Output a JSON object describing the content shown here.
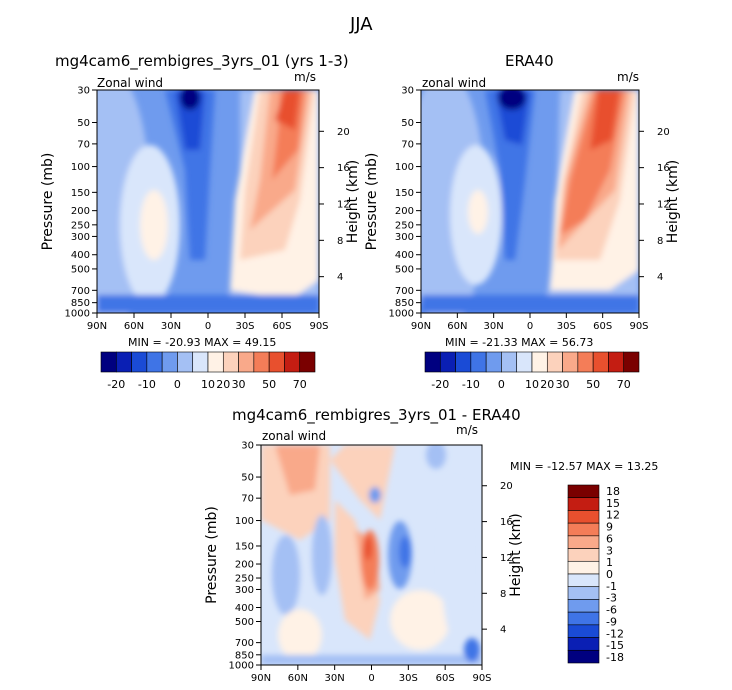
{
  "page": {
    "main_title": "JJA"
  },
  "colors": {
    "levels_main": [
      "#000080",
      "#0a1fb4",
      "#1a4bd6",
      "#3f74e6",
      "#6f9bee",
      "#a4c0f4",
      "#d9e6fb",
      "#fff2e6",
      "#fcd2bc",
      "#f9a98a",
      "#f47d58",
      "#e8502e",
      "#c41d12",
      "#7a0000"
    ],
    "levels_diff": [
      "#000080",
      "#0a1fb4",
      "#1a4bd6",
      "#3f74e6",
      "#6f9bee",
      "#a4c0f4",
      "#d9e6fb",
      "#fff2e6",
      "#fcd2bc",
      "#f9a98a",
      "#f47d58",
      "#e8502e",
      "#c41d12",
      "#7a0000"
    ]
  },
  "panels": [
    {
      "title": "mg4cam6_rembigres_3yrs_01 (yrs 1-3)",
      "variable": "Zonal wind",
      "units": "m/s",
      "stats": "MIN = -20.93   MAX =  49.15"
    },
    {
      "title": "ERA40",
      "variable": "zonal wind",
      "units": "m/s",
      "stats": "MIN = -21.33   MAX =  56.73"
    },
    {
      "title": "mg4cam6_rembigres_3yrs_01 - ERA40",
      "variable": "zonal wind",
      "units": "m/s",
      "stats": "MIN = -12.57   MAX =  13.25"
    }
  ],
  "axes": {
    "y_title": "Pressure (mb)",
    "y2_title": "Height (km)",
    "x_ticks": [
      "90N",
      "60N",
      "30N",
      "0",
      "30S",
      "60S",
      "90S"
    ],
    "p_ticks": [
      "30",
      "50",
      "70",
      "100",
      "150",
      "200",
      "250",
      "300",
      "400",
      "500",
      "700",
      "850",
      "1000"
    ],
    "p_values": [
      30,
      50,
      70,
      100,
      150,
      200,
      250,
      300,
      400,
      500,
      700,
      850,
      1000
    ],
    "h_ticks": [
      "20",
      "16",
      "12",
      "8",
      "4"
    ],
    "h_values": [
      20,
      16,
      12,
      8,
      4
    ]
  },
  "chart_data": [
    {
      "type": "heatmap",
      "title": "mg4cam6_rembigres_3yrs_01 (yrs 1-3)",
      "x": [
        "90N",
        "60N",
        "30N",
        "0",
        "30S",
        "60S",
        "90S"
      ],
      "y": [
        30,
        50,
        70,
        100,
        150,
        200,
        250,
        300,
        400,
        500,
        700,
        850,
        1000
      ],
      "levels": [
        -20,
        -10,
        0,
        10,
        20,
        30,
        50,
        70
      ],
      "min": -20.93,
      "max": 49.15
    },
    {
      "type": "heatmap",
      "title": "ERA40",
      "x": [
        "90N",
        "60N",
        "30N",
        "0",
        "30S",
        "60S",
        "90S"
      ],
      "y": [
        30,
        50,
        70,
        100,
        150,
        200,
        250,
        300,
        400,
        500,
        700,
        850,
        1000
      ],
      "levels": [
        -20,
        -10,
        0,
        10,
        20,
        30,
        50,
        70
      ],
      "min": -21.33,
      "max": 56.73
    },
    {
      "type": "heatmap",
      "title": "mg4cam6_rembigres_3yrs_01 - ERA40",
      "x": [
        "90N",
        "60N",
        "30N",
        "0",
        "30S",
        "60S",
        "90S"
      ],
      "y": [
        30,
        50,
        70,
        100,
        150,
        200,
        250,
        300,
        400,
        500,
        700,
        850,
        1000
      ],
      "levels": [
        -18,
        -15,
        -12,
        -9,
        -6,
        -3,
        -1,
        0,
        1,
        3,
        6,
        9,
        12,
        15,
        18
      ],
      "min": -12.57,
      "max": 13.25
    }
  ],
  "colorbars": {
    "main_labels": [
      "-20",
      "-10",
      "0",
      "10",
      "20",
      "30",
      "50",
      "70"
    ],
    "diff_labels": [
      "18",
      "15",
      "12",
      "9",
      "6",
      "3",
      "1",
      "0",
      "-1",
      "-3",
      "-6",
      "-9",
      "-12",
      "-15",
      "-18"
    ]
  }
}
